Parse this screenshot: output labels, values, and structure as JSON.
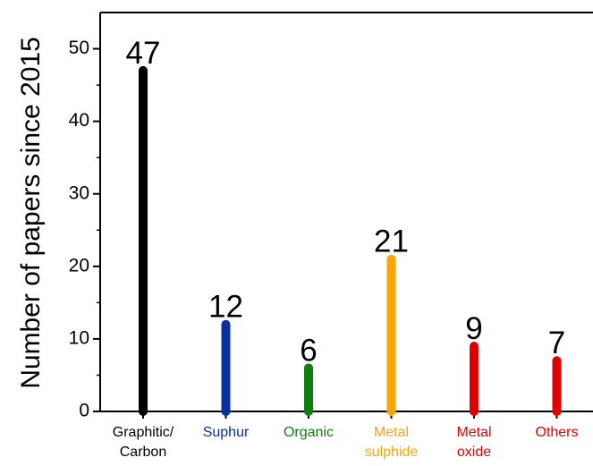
{
  "chart_data": {
    "type": "bar",
    "ylabel": "Number of papers since 2015",
    "xlabel": "",
    "ylim": [
      0,
      55
    ],
    "yticks": [
      0,
      10,
      20,
      30,
      40,
      50
    ],
    "categories": [
      {
        "lines": [
          "Graphitic/",
          "Carbon"
        ],
        "color": "#000000"
      },
      {
        "lines": [
          "Suphur"
        ],
        "color": "#0b2f9f"
      },
      {
        "lines": [
          "Organic"
        ],
        "color": "#0f7f0f"
      },
      {
        "lines": [
          "Metal",
          "sulphide"
        ],
        "color": "#ffa500"
      },
      {
        "lines": [
          "Metal",
          "oxide"
        ],
        "color": "#e00000"
      },
      {
        "lines": [
          "Others"
        ],
        "color": "#e00000"
      }
    ],
    "values": [
      47,
      12,
      6,
      21,
      9,
      7
    ],
    "data_labels": [
      "47",
      "12",
      "6",
      "21",
      "9",
      "7"
    ],
    "grid": false,
    "legend": "none"
  }
}
